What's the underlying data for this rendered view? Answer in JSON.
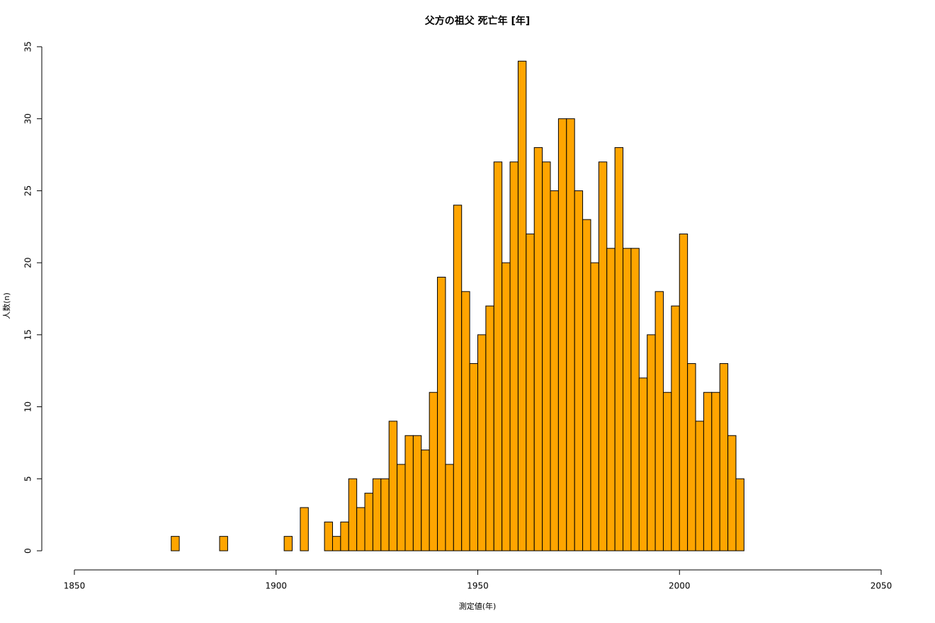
{
  "chart_data": {
    "type": "histogram",
    "title": "父方の祖父 死亡年 [年]",
    "x_label": "測定値(年)",
    "y_label": "人数(n)",
    "bins": [
      1874,
      1876,
      1878,
      1880,
      1882,
      1884,
      1886,
      1888,
      1890,
      1892,
      1894,
      1896,
      1898,
      1900,
      1902,
      1904,
      1906,
      1908,
      1910,
      1912,
      1914,
      1916,
      1918,
      1920,
      1922,
      1924,
      1926,
      1928,
      1930,
      1932,
      1934,
      1936,
      1938,
      1940,
      1942,
      1944,
      1946,
      1948,
      1950,
      1952,
      1954,
      1956,
      1958,
      1960,
      1962,
      1964,
      1966,
      1968,
      1970,
      1972,
      1974,
      1976,
      1978,
      1980,
      1982,
      1984,
      1986,
      1988,
      1990,
      1992,
      1994,
      1996,
      1998,
      2000,
      2002,
      2004,
      2006,
      2008,
      2010,
      2012,
      2014,
      2016
    ],
    "values": [
      1,
      0,
      0,
      0,
      0,
      0,
      1,
      0,
      0,
      0,
      0,
      0,
      0,
      0,
      1,
      0,
      3,
      0,
      0,
      2,
      1,
      2,
      5,
      3,
      4,
      5,
      5,
      9,
      6,
      8,
      8,
      7,
      11,
      19,
      6,
      24,
      18,
      13,
      15,
      17,
      27,
      20,
      27,
      34,
      22,
      28,
      27,
      25,
      30,
      30,
      25,
      23,
      20,
      27,
      21,
      28,
      21,
      21,
      12,
      15,
      18,
      11,
      17,
      22,
      13,
      9,
      11,
      11,
      13,
      8,
      5
    ],
    "color": "#ffa500",
    "xlim": [
      1850,
      2050
    ],
    "xticks": [
      1850,
      1900,
      1950,
      2000,
      2050
    ],
    "ylim": [
      0,
      35
    ],
    "yticks": [
      0,
      5,
      10,
      15,
      20,
      25,
      30,
      35
    ]
  }
}
